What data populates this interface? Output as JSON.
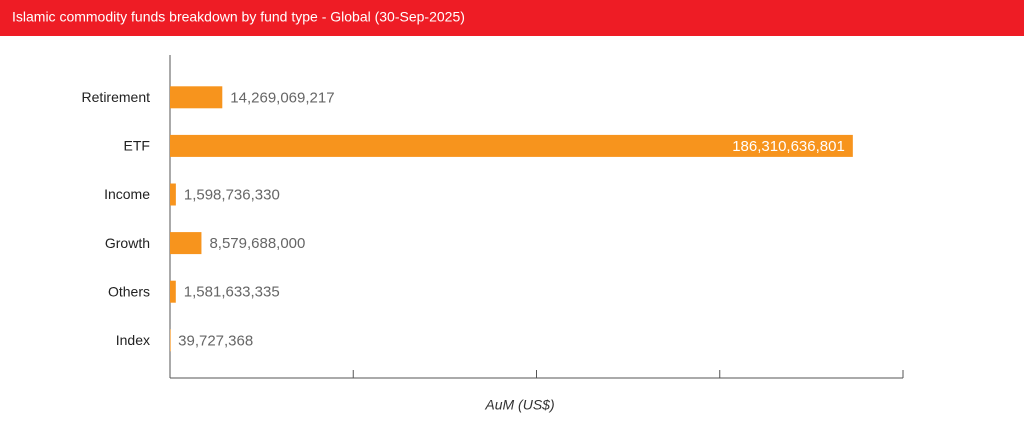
{
  "chart_data": {
    "type": "hbar",
    "title": "Islamic commodity funds breakdown by fund type - Global (30-Sep-2025)",
    "x_label": "AuM (US$)",
    "categories": [
      "Retirement",
      "ETF",
      "Income",
      "Growth",
      "Others",
      "Index"
    ],
    "values": [
      14269069217,
      186310636801,
      1598736330,
      8579688000,
      1581633335,
      39727368
    ],
    "value_labels": [
      "14,269,069,217",
      "186,310,636,801",
      "1,598,736,330",
      "8,579,688,000",
      "1,581,633,335",
      "39,727,368"
    ],
    "color": "#f7941d",
    "xlim": [
      0,
      200000000000
    ],
    "xticks": [
      0,
      50000000000,
      100000000000,
      150000000000,
      200000000000
    ]
  }
}
